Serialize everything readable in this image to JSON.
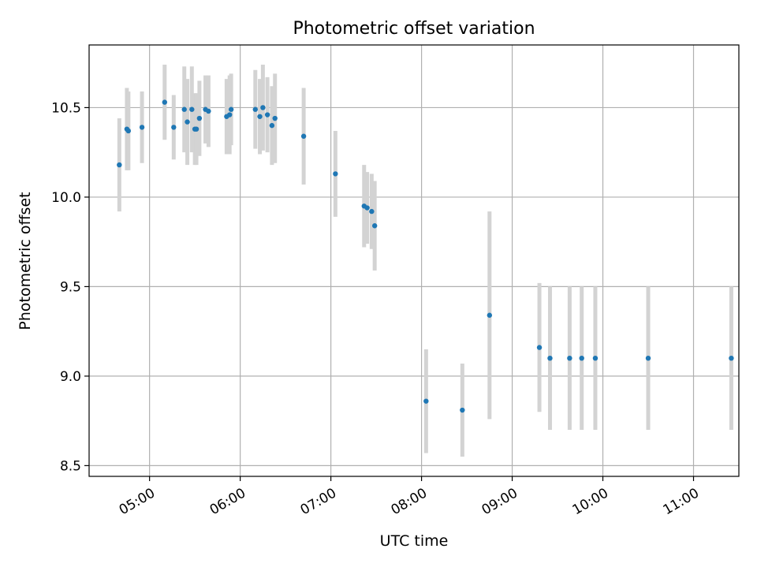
{
  "chart_data": {
    "type": "scatter",
    "title": "Photometric offset variation",
    "xlabel": "UTC time",
    "ylabel": "Photometric offset",
    "xlim": [
      "04:20",
      "11:30"
    ],
    "ylim": [
      8.44,
      10.85
    ],
    "grid": true,
    "x_ticks": [
      {
        "value": "05:00",
        "label": "05:00"
      },
      {
        "value": "06:00",
        "label": "06:00"
      },
      {
        "value": "07:00",
        "label": "07:00"
      },
      {
        "value": "08:00",
        "label": "08:00"
      },
      {
        "value": "09:00",
        "label": "09:00"
      },
      {
        "value": "10:00",
        "label": "10:00"
      },
      {
        "value": "11:00",
        "label": "11:00"
      }
    ],
    "y_ticks": [
      {
        "value": 8.5,
        "label": "8.5"
      },
      {
        "value": 9.0,
        "label": "9.0"
      },
      {
        "value": 9.5,
        "label": "9.5"
      },
      {
        "value": 10.0,
        "label": "10.0"
      },
      {
        "value": 10.5,
        "label": "10.5"
      }
    ],
    "colors": {
      "point": "#1f77b4",
      "errorbar": "#d3d3d3",
      "grid": "#b0b0b0"
    },
    "points": [
      {
        "x": "04:40",
        "y": 10.18,
        "err": 0.26
      },
      {
        "x": "04:45",
        "y": 10.38,
        "err": 0.23
      },
      {
        "x": "04:46",
        "y": 10.37,
        "err": 0.22
      },
      {
        "x": "04:55",
        "y": 10.39,
        "err": 0.2
      },
      {
        "x": "05:10",
        "y": 10.53,
        "err": 0.21
      },
      {
        "x": "05:16",
        "y": 10.39,
        "err": 0.18
      },
      {
        "x": "05:23",
        "y": 10.49,
        "err": 0.24
      },
      {
        "x": "05:25",
        "y": 10.42,
        "err": 0.24
      },
      {
        "x": "05:28",
        "y": 10.49,
        "err": 0.24
      },
      {
        "x": "05:30",
        "y": 10.38,
        "err": 0.2
      },
      {
        "x": "05:31",
        "y": 10.38,
        "err": 0.2
      },
      {
        "x": "05:33",
        "y": 10.44,
        "err": 0.21
      },
      {
        "x": "05:37",
        "y": 10.49,
        "err": 0.19
      },
      {
        "x": "05:39",
        "y": 10.48,
        "err": 0.2
      },
      {
        "x": "05:51",
        "y": 10.45,
        "err": 0.21
      },
      {
        "x": "05:53",
        "y": 10.46,
        "err": 0.22
      },
      {
        "x": "05:54",
        "y": 10.49,
        "err": 0.2
      },
      {
        "x": "06:10",
        "y": 10.49,
        "err": 0.22
      },
      {
        "x": "06:13",
        "y": 10.45,
        "err": 0.21
      },
      {
        "x": "06:15",
        "y": 10.5,
        "err": 0.24
      },
      {
        "x": "06:18",
        "y": 10.46,
        "err": 0.21
      },
      {
        "x": "06:21",
        "y": 10.4,
        "err": 0.22
      },
      {
        "x": "06:23",
        "y": 10.44,
        "err": 0.25
      },
      {
        "x": "06:42",
        "y": 10.34,
        "err": 0.27
      },
      {
        "x": "07:03",
        "y": 10.13,
        "err": 0.24
      },
      {
        "x": "07:22",
        "y": 9.95,
        "err": 0.23
      },
      {
        "x": "07:24",
        "y": 9.94,
        "err": 0.2
      },
      {
        "x": "07:27",
        "y": 9.92,
        "err": 0.21
      },
      {
        "x": "07:29",
        "y": 9.84,
        "err": 0.25
      },
      {
        "x": "08:03",
        "y": 8.86,
        "err": 0.29
      },
      {
        "x": "08:27",
        "y": 8.81,
        "err": 0.26
      },
      {
        "x": "08:45",
        "y": 9.34,
        "err": 0.58
      },
      {
        "x": "09:18",
        "y": 9.16,
        "err": 0.36
      },
      {
        "x": "09:25",
        "y": 9.1,
        "err": 0.4
      },
      {
        "x": "09:38",
        "y": 9.1,
        "err": 0.4
      },
      {
        "x": "09:46",
        "y": 9.1,
        "err": 0.4
      },
      {
        "x": "09:55",
        "y": 9.1,
        "err": 0.4
      },
      {
        "x": "10:30",
        "y": 9.1,
        "err": 0.4
      },
      {
        "x": "11:25",
        "y": 9.1,
        "err": 0.4
      }
    ]
  }
}
